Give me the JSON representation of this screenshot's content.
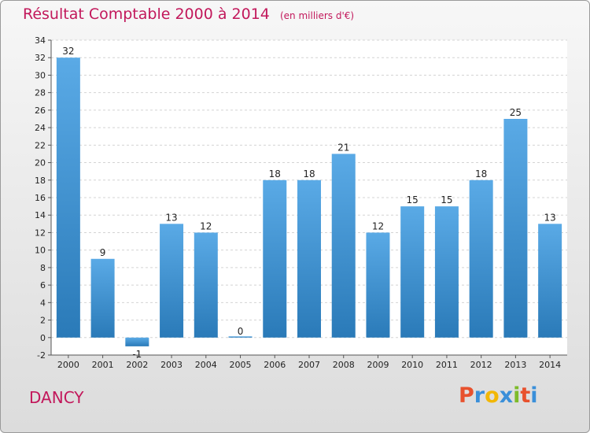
{
  "header": {
    "title": "Résultat Comptable 2000 à 2014",
    "unit": "(en milliers d'€)"
  },
  "footer": {
    "commune": "DANCY",
    "logo_letters": [
      "P",
      "r",
      "o",
      "x",
      "i",
      "t",
      "i"
    ]
  },
  "colors": {
    "title": "#c2185b",
    "bar_light": "#5aaae6",
    "bar_dark": "#2a7ab8",
    "logo": [
      "#e8512d",
      "#3a8fd9",
      "#f2b705",
      "#3a8fd9",
      "#7dbb2a",
      "#e8512d",
      "#3a8fd9"
    ]
  },
  "chart_data": {
    "type": "bar",
    "categories": [
      "2000",
      "2001",
      "2002",
      "2003",
      "2004",
      "2005",
      "2006",
      "2007",
      "2008",
      "2009",
      "2010",
      "2011",
      "2012",
      "2013",
      "2014"
    ],
    "values": [
      32,
      9,
      -1,
      13,
      12,
      0,
      18,
      18,
      21,
      12,
      15,
      15,
      18,
      25,
      13
    ],
    "data_labels": [
      "32",
      "9",
      "-1",
      "13",
      "12",
      "0",
      "18",
      "18",
      "21",
      "12",
      "15",
      "15",
      "18",
      "25",
      "13"
    ],
    "ylim": [
      -2,
      34
    ],
    "yticks": [
      -2,
      0,
      2,
      4,
      6,
      8,
      10,
      12,
      14,
      16,
      18,
      20,
      22,
      24,
      26,
      28,
      30,
      32,
      34
    ],
    "grid": true
  }
}
